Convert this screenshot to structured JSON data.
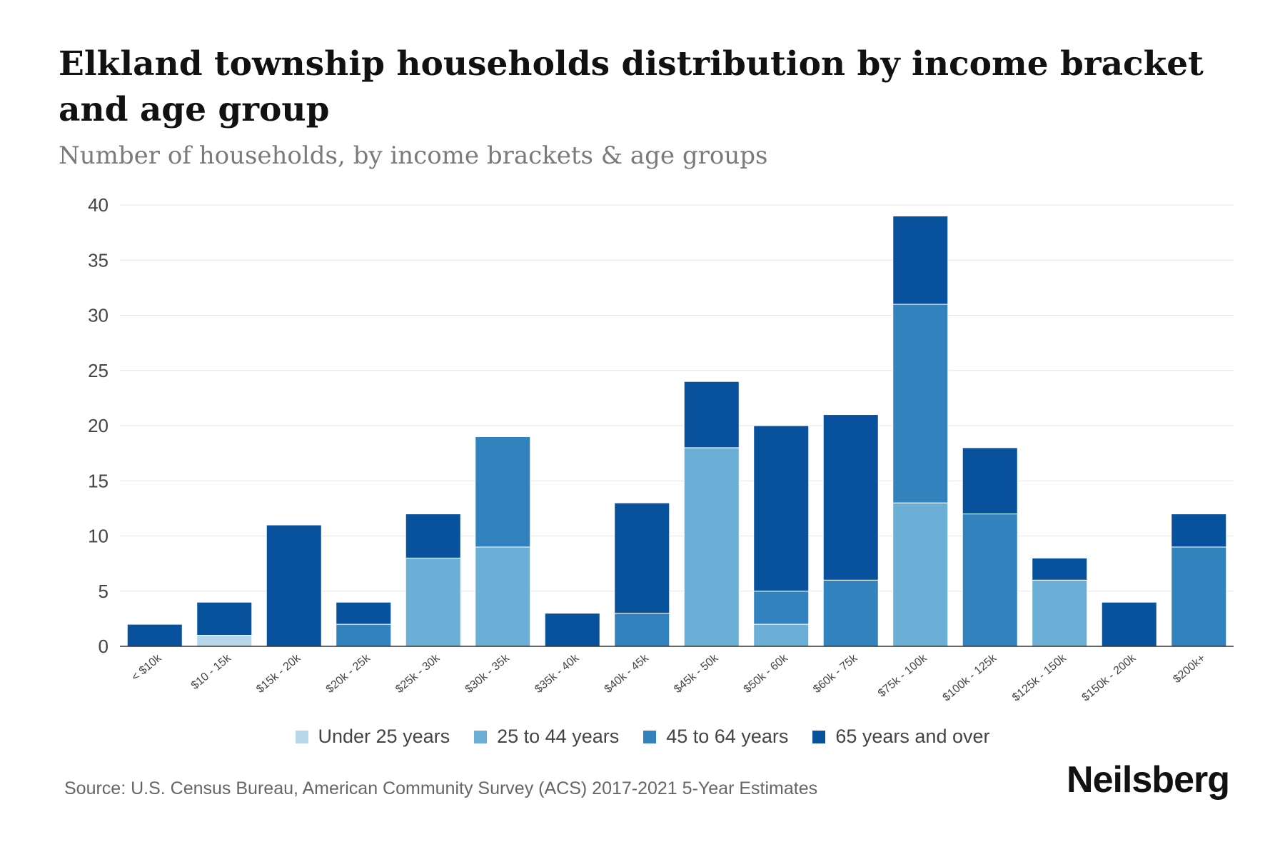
{
  "header": {
    "title": "Elkland township households distribution by income bracket and age group",
    "subtitle": "Number of households, by income brackets & age groups"
  },
  "footer": {
    "source": "Source: U.S. Census Bureau, American Community Survey (ACS) 2017-2021 5-Year Estimates",
    "brand": "Neilsberg"
  },
  "colors": {
    "under_25": "#b6d7ea",
    "age_25_44": "#6baed6",
    "age_45_64": "#3182bd",
    "age_65_plus": "#08519c",
    "grid": "#e6e6e6",
    "axis": "#333333",
    "tick_text": "#444444"
  },
  "chart_data": {
    "type": "bar",
    "stacked": true,
    "title": "Elkland township households distribution by income bracket and age group",
    "subtitle": "Number of households, by income brackets & age groups",
    "xlabel": "",
    "ylabel": "",
    "ylim": [
      0,
      40
    ],
    "yticks": [
      0,
      5,
      10,
      15,
      20,
      25,
      30,
      35,
      40
    ],
    "grid": true,
    "legend_position": "bottom-center",
    "categories": [
      "< $10k",
      "$10 - 15k",
      "$15k - 20k",
      "$20k - 25k",
      "$25k - 30k",
      "$30k - 35k",
      "$35k - 40k",
      "$40k - 45k",
      "$45k - 50k",
      "$50k - 60k",
      "$60k - 75k",
      "$75k - 100k",
      "$100k - 125k",
      "$125k - 150k",
      "$150k - 200k",
      "$200k+"
    ],
    "series": [
      {
        "name": "Under 25 years",
        "color_key": "under_25",
        "values": [
          0,
          1,
          0,
          0,
          0,
          0,
          0,
          0,
          0,
          0,
          0,
          0,
          0,
          0,
          0,
          0
        ]
      },
      {
        "name": "25 to 44 years",
        "color_key": "age_25_44",
        "values": [
          0,
          0,
          0,
          0,
          8,
          9,
          0,
          0,
          18,
          2,
          0,
          13,
          0,
          6,
          0,
          0
        ]
      },
      {
        "name": "45 to 64 years",
        "color_key": "age_45_64",
        "values": [
          0,
          0,
          0,
          2,
          0,
          10,
          0,
          3,
          0,
          3,
          6,
          18,
          12,
          0,
          0,
          9
        ]
      },
      {
        "name": "65 years and over",
        "color_key": "age_65_plus",
        "values": [
          2,
          3,
          11,
          2,
          4,
          0,
          3,
          10,
          6,
          15,
          15,
          8,
          6,
          2,
          4,
          3
        ]
      }
    ]
  }
}
